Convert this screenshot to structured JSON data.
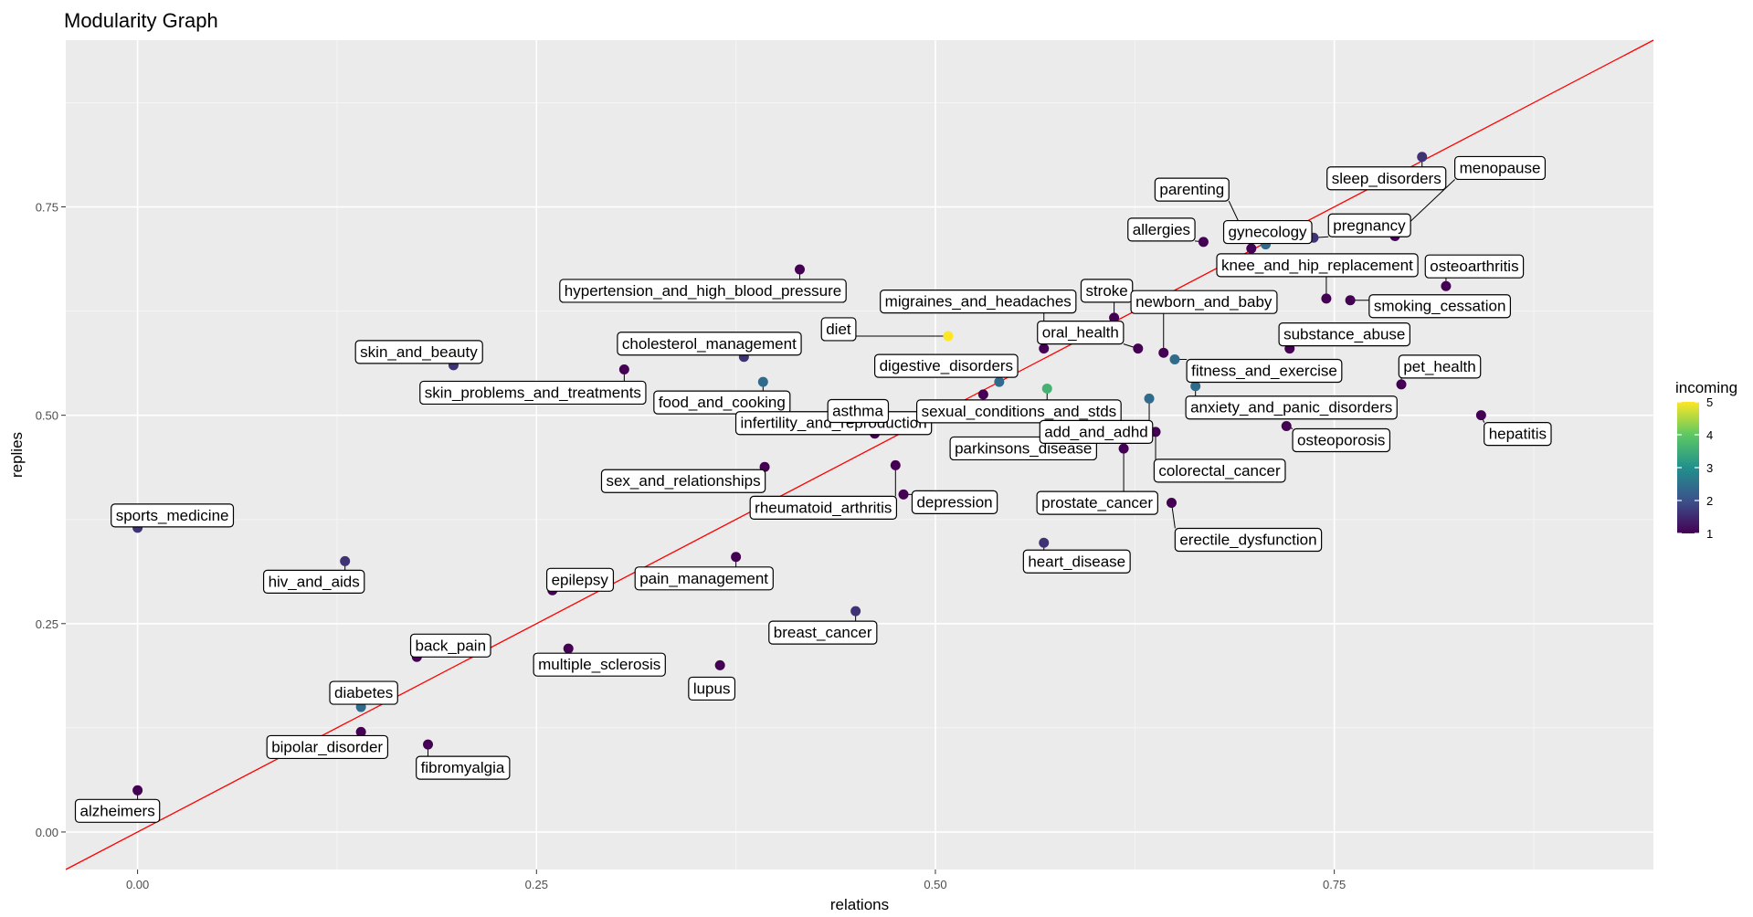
{
  "chart_data": {
    "type": "scatter",
    "title": "Modularity Graph",
    "xlabel": "relations",
    "ylabel": "replies",
    "xlim": [
      -0.045,
      0.95
    ],
    "ylim": [
      -0.045,
      0.95
    ],
    "x_ticks": [
      0.0,
      0.25,
      0.5,
      0.75
    ],
    "x_tick_labels": [
      "0.00",
      "0.25",
      "0.50",
      "0.75"
    ],
    "y_ticks": [
      0.0,
      0.25,
      0.5,
      0.75
    ],
    "y_tick_labels": [
      "0.00",
      "0.25",
      "0.50",
      "0.75"
    ],
    "grid": true,
    "legend": {
      "title": "incoming",
      "position": "right",
      "min": 1,
      "max": 5,
      "ticks": [
        1,
        2,
        3,
        4,
        5
      ],
      "tick_labels": [
        "1",
        "2",
        "3",
        "4",
        "5"
      ]
    },
    "reference_line": {
      "color": "#ff0000",
      "from": [
        -0.045,
        -0.045
      ],
      "to": [
        0.95,
        0.95
      ]
    },
    "colors": {
      "panel": "#ebebeb",
      "grid_major": "#ffffff",
      "grid_minor": "#f5f5f5",
      "line": "#ff0000"
    },
    "points": [
      {
        "name": "alzheimers",
        "x": 0.0,
        "y": 0.05,
        "incoming": 1
      },
      {
        "name": "sports_medicine",
        "x": 0.0,
        "y": 0.365,
        "incoming": 1.6
      },
      {
        "name": "hiv_and_aids",
        "x": 0.13,
        "y": 0.325,
        "incoming": 1.6
      },
      {
        "name": "diabetes",
        "x": 0.14,
        "y": 0.15,
        "incoming": 2.4
      },
      {
        "name": "bipolar_disorder",
        "x": 0.14,
        "y": 0.12,
        "incoming": 1
      },
      {
        "name": "back_pain",
        "x": 0.175,
        "y": 0.21,
        "incoming": 1
      },
      {
        "name": "fibromyalgia",
        "x": 0.182,
        "y": 0.105,
        "incoming": 1
      },
      {
        "name": "skin_and_beauty",
        "x": 0.198,
        "y": 0.56,
        "incoming": 1.6
      },
      {
        "name": "epilepsy",
        "x": 0.26,
        "y": 0.29,
        "incoming": 1
      },
      {
        "name": "multiple_sclerosis",
        "x": 0.27,
        "y": 0.22,
        "incoming": 1
      },
      {
        "name": "skin_problems_and_treatments",
        "x": 0.305,
        "y": 0.555,
        "incoming": 1
      },
      {
        "name": "lupus",
        "x": 0.365,
        "y": 0.2,
        "incoming": 1
      },
      {
        "name": "pain_management",
        "x": 0.375,
        "y": 0.33,
        "incoming": 1
      },
      {
        "name": "cholesterol_management",
        "x": 0.38,
        "y": 0.57,
        "incoming": 1.6
      },
      {
        "name": "food_and_cooking",
        "x": 0.392,
        "y": 0.54,
        "incoming": 2.4
      },
      {
        "name": "sex_and_relationships",
        "x": 0.393,
        "y": 0.438,
        "incoming": 1
      },
      {
        "name": "hypertension_and_high_blood_pressure",
        "x": 0.415,
        "y": 0.675,
        "incoming": 1
      },
      {
        "name": "breast_cancer",
        "x": 0.45,
        "y": 0.265,
        "incoming": 1.6
      },
      {
        "name": "infertility_and_reproduction",
        "x": 0.462,
        "y": 0.478,
        "incoming": 1
      },
      {
        "name": "asthma",
        "x": 0.472,
        "y": 0.487,
        "incoming": 1.6
      },
      {
        "name": "rheumatoid_arthritis",
        "x": 0.475,
        "y": 0.44,
        "incoming": 1
      },
      {
        "name": "depression",
        "x": 0.48,
        "y": 0.405,
        "incoming": 1
      },
      {
        "name": "diet",
        "x": 0.508,
        "y": 0.595,
        "incoming": 5
      },
      {
        "name": "sexual_conditions_and_stds",
        "x": 0.53,
        "y": 0.525,
        "incoming": 1
      },
      {
        "name": "digestive_disorders",
        "x": 0.54,
        "y": 0.54,
        "incoming": 2.4
      },
      {
        "name": "migraines_and_headaches",
        "x": 0.568,
        "y": 0.58,
        "incoming": 1
      },
      {
        "name": "parkinsons_disease",
        "x": 0.57,
        "y": 0.532,
        "incoming": 3.6
      },
      {
        "name": "heart_disease",
        "x": 0.568,
        "y": 0.347,
        "incoming": 1.6
      },
      {
        "name": "prostate_cancer",
        "x": 0.618,
        "y": 0.46,
        "incoming": 1
      },
      {
        "name": "stroke",
        "x": 0.612,
        "y": 0.617,
        "incoming": 1
      },
      {
        "name": "oral_health",
        "x": 0.627,
        "y": 0.58,
        "incoming": 1
      },
      {
        "name": "add_and_adhd",
        "x": 0.634,
        "y": 0.52,
        "incoming": 2.4
      },
      {
        "name": "colorectal_cancer",
        "x": 0.638,
        "y": 0.48,
        "incoming": 1
      },
      {
        "name": "newborn_and_baby",
        "x": 0.643,
        "y": 0.575,
        "incoming": 1
      },
      {
        "name": "erectile_dysfunction",
        "x": 0.648,
        "y": 0.395,
        "incoming": 1
      },
      {
        "name": "fitness_and_exercise",
        "x": 0.65,
        "y": 0.567,
        "incoming": 2.4
      },
      {
        "name": "anxiety_and_panic_disorders",
        "x": 0.663,
        "y": 0.535,
        "incoming": 2.4
      },
      {
        "name": "allergies",
        "x": 0.668,
        "y": 0.708,
        "incoming": 1
      },
      {
        "name": "parenting",
        "x": 0.698,
        "y": 0.7,
        "incoming": 1
      },
      {
        "name": "gynecology",
        "x": 0.707,
        "y": 0.705,
        "incoming": 2.4
      },
      {
        "name": "osteoporosis",
        "x": 0.72,
        "y": 0.487,
        "incoming": 1
      },
      {
        "name": "substance_abuse",
        "x": 0.722,
        "y": 0.58,
        "incoming": 1
      },
      {
        "name": "pregnancy",
        "x": 0.737,
        "y": 0.713,
        "incoming": 1.6
      },
      {
        "name": "knee_and_hip_replacement",
        "x": 0.745,
        "y": 0.64,
        "incoming": 1
      },
      {
        "name": "smoking_cessation",
        "x": 0.76,
        "y": 0.638,
        "incoming": 1
      },
      {
        "name": "menopause",
        "x": 0.788,
        "y": 0.715,
        "incoming": 1
      },
      {
        "name": "pet_health",
        "x": 0.792,
        "y": 0.537,
        "incoming": 1
      },
      {
        "name": "sleep_disorders",
        "x": 0.805,
        "y": 0.81,
        "incoming": 1.6
      },
      {
        "name": "osteoarthritis",
        "x": 0.82,
        "y": 0.655,
        "incoming": 1
      },
      {
        "name": "hepatitis",
        "x": 0.842,
        "y": 0.5,
        "incoming": 1
      }
    ]
  }
}
